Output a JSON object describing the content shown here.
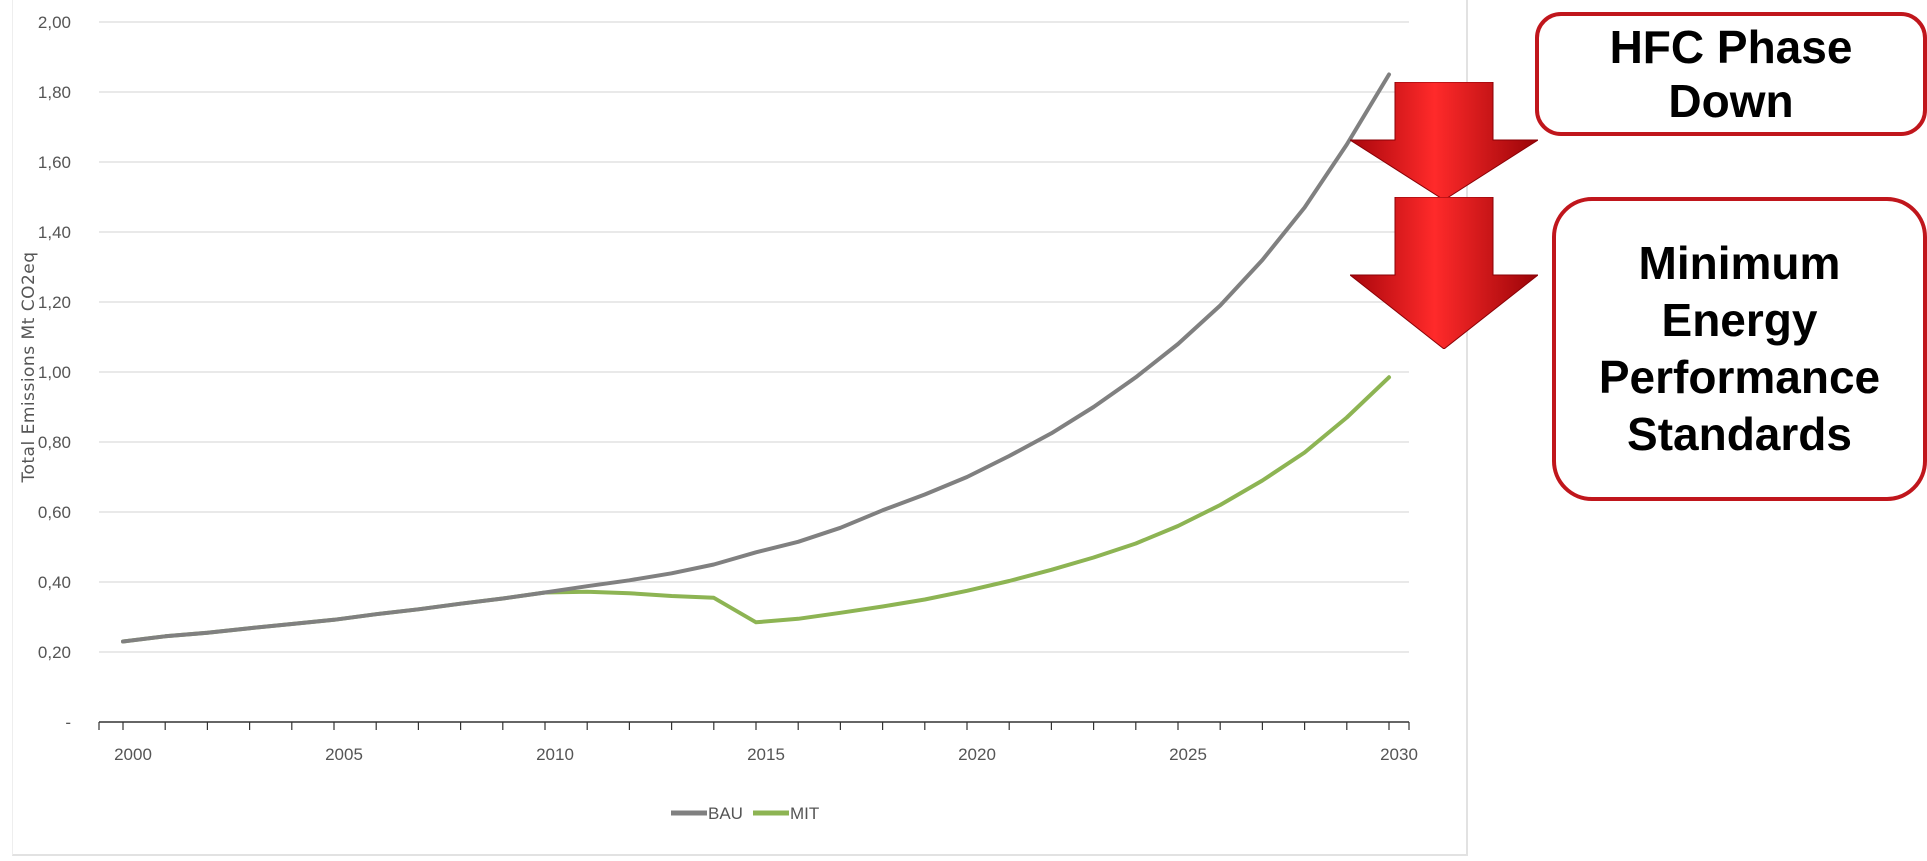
{
  "chart_data": {
    "type": "line",
    "title": "",
    "ylabel": "Total Emissions Mt CO2eq",
    "xlabel": "",
    "x": [
      2000,
      2001,
      2002,
      2003,
      2004,
      2005,
      2006,
      2007,
      2008,
      2009,
      2010,
      2011,
      2012,
      2013,
      2014,
      2015,
      2016,
      2017,
      2018,
      2019,
      2020,
      2021,
      2022,
      2023,
      2024,
      2025,
      2026,
      2027,
      2028,
      2029,
      2030
    ],
    "series": [
      {
        "name": "BAU",
        "color": "#808080",
        "values": [
          0.23,
          0.245,
          0.255,
          0.268,
          0.28,
          0.292,
          0.308,
          0.322,
          0.338,
          0.353,
          0.37,
          0.388,
          0.405,
          0.425,
          0.45,
          0.485,
          0.515,
          0.555,
          0.605,
          0.65,
          0.7,
          0.76,
          0.825,
          0.9,
          0.985,
          1.08,
          1.19,
          1.32,
          1.47,
          1.65,
          1.85
        ]
      },
      {
        "name": "MIT",
        "color": "#8db453",
        "values": [
          0.23,
          0.245,
          0.255,
          0.268,
          0.28,
          0.292,
          0.308,
          0.322,
          0.338,
          0.353,
          0.37,
          0.372,
          0.368,
          0.36,
          0.355,
          0.285,
          0.295,
          0.312,
          0.33,
          0.35,
          0.375,
          0.403,
          0.435,
          0.47,
          0.51,
          0.56,
          0.62,
          0.69,
          0.77,
          0.87,
          0.985
        ]
      }
    ],
    "ylim": [
      0,
      2.0
    ],
    "yticks": [
      0,
      0.2,
      0.4,
      0.6,
      0.8,
      1.0,
      1.2,
      1.4,
      1.6,
      1.8,
      2.0
    ],
    "ytick_labels": [
      "-",
      "0,20",
      "0,40",
      "0,60",
      "0,80",
      "1,00",
      "1,20",
      "1,40",
      "1,60",
      "1,80",
      "2,00"
    ],
    "xticks": [
      2000,
      2005,
      2010,
      2015,
      2020,
      2025,
      2030
    ],
    "xtick_labels": [
      "2000",
      "2005",
      "2010",
      "2015",
      "2020",
      "2025",
      "2030"
    ],
    "grid": true,
    "legend": "bottom-center"
  },
  "callouts": {
    "hfc": "HFC Phase Down",
    "meps": "Minimum Energy Performance Standards"
  },
  "colors": {
    "arrow": "#d9101a",
    "callout_border": "#c0161c"
  }
}
